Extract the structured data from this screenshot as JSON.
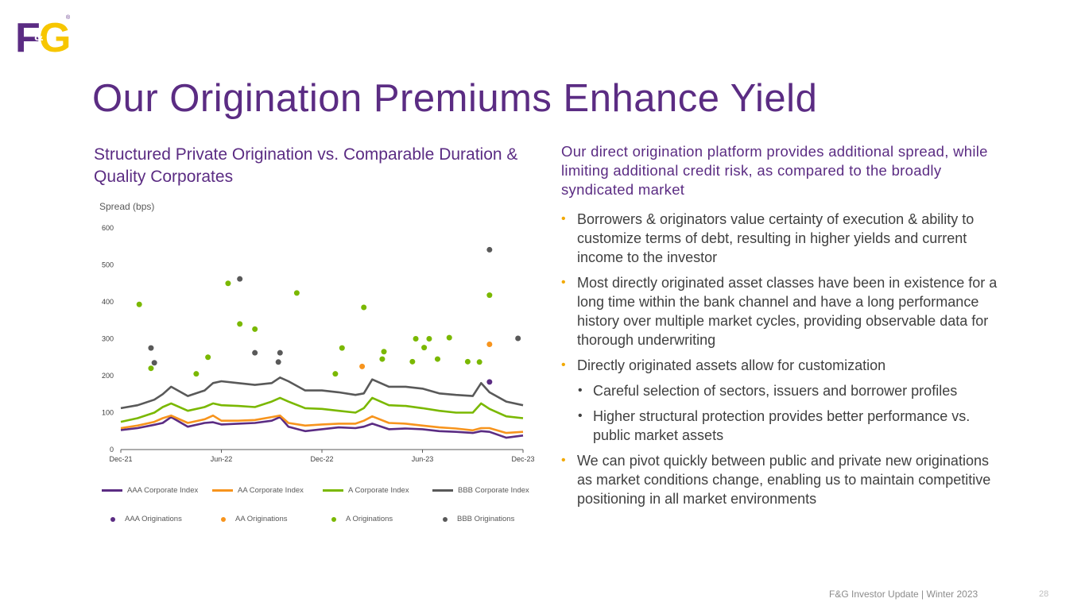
{
  "slide": {
    "title": "Our Origination Premiums Enhance Yield",
    "chart_heading": "Structured Private Origination vs. Comparable Duration & Quality Corporates",
    "right_heading": "Our direct origination platform provides additional spread, while limiting additional credit risk, as compared to the broadly syndicated market",
    "bullets": [
      "Borrowers & originators value certainty of execution & ability to customize terms of debt, resulting in higher yields and current income to the investor",
      "Most directly originated asset classes have been in existence for a long time within the bank channel and have a long performance history over multiple market cycles, providing observable data for thorough underwriting",
      "Directly originated assets allow for customization",
      "Careful selection of sectors, issuers and borrower profiles",
      "Higher structural protection provides better performance vs. public market assets",
      "We can pivot quickly between public and private new originations as market conditions change, enabling us to maintain competitive positioning in all market environments"
    ],
    "footer": "F&G Investor Update | Winter 2023",
    "page_number": "28"
  },
  "logo": {
    "text_f": "F",
    "text_amp": "&",
    "text_g": "G",
    "mark": "®",
    "purple": "#5b2c83",
    "yellow": "#f7c600"
  },
  "colors": {
    "AAA": "#5b2c83",
    "AA": "#f7941d",
    "A": "#7ab800",
    "BBB": "#595959"
  },
  "chart_data": {
    "type": "line",
    "ylabel": "Spread (bps)",
    "ylim": [
      0,
      600
    ],
    "yticks": [
      0,
      100,
      200,
      300,
      400,
      500,
      600
    ],
    "x_tick_labels": [
      "Dec-21",
      "Jun-22",
      "Dec-22",
      "Jun-23",
      "Dec-23"
    ],
    "x_axis_months": [
      0,
      6,
      12,
      18,
      24
    ],
    "x_unit": "months since Dec-21",
    "series": [
      {
        "name": "AAA Corporate Index",
        "key": "AAA",
        "x": [
          0,
          1,
          2,
          2.5,
          3,
          4,
          5,
          5.5,
          6,
          7,
          8,
          9,
          9.5,
          10,
          11,
          12,
          13,
          14,
          14.5,
          15,
          16,
          17,
          18,
          19,
          20,
          21,
          21.5,
          22,
          23,
          24
        ],
        "values": [
          53,
          58,
          67,
          72,
          88,
          62,
          72,
          74,
          68,
          70,
          72,
          78,
          88,
          62,
          50,
          55,
          60,
          58,
          62,
          70,
          55,
          57,
          55,
          50,
          48,
          45,
          50,
          48,
          32,
          38
        ]
      },
      {
        "name": "AA Corporate Index",
        "key": "AA",
        "x": [
          0,
          1,
          2,
          2.5,
          3,
          4,
          5,
          5.5,
          6,
          7,
          8,
          9,
          9.5,
          10,
          11,
          12,
          13,
          14,
          14.5,
          15,
          16,
          17,
          18,
          19,
          20,
          21,
          21.5,
          22,
          23,
          24
        ],
        "values": [
          58,
          65,
          75,
          85,
          92,
          72,
          82,
          92,
          78,
          78,
          80,
          88,
          92,
          72,
          65,
          68,
          70,
          70,
          78,
          90,
          72,
          70,
          65,
          60,
          57,
          52,
          58,
          58,
          45,
          48
        ]
      },
      {
        "name": "A Corporate Index",
        "key": "A",
        "x": [
          0,
          1,
          2,
          2.5,
          3,
          4,
          5,
          5.5,
          6,
          7,
          8,
          9,
          9.5,
          10,
          11,
          12,
          13,
          14,
          14.5,
          15,
          16,
          17,
          18,
          19,
          20,
          21,
          21.5,
          22,
          23,
          24
        ],
        "values": [
          75,
          85,
          100,
          115,
          125,
          105,
          115,
          125,
          120,
          118,
          115,
          130,
          140,
          130,
          112,
          110,
          105,
          100,
          112,
          140,
          120,
          118,
          112,
          105,
          100,
          100,
          125,
          110,
          90,
          85
        ]
      },
      {
        "name": "BBB Corporate Index",
        "key": "BBB",
        "x": [
          0,
          1,
          2,
          2.5,
          3,
          4,
          5,
          5.5,
          6,
          7,
          8,
          9,
          9.5,
          10,
          11,
          12,
          13,
          14,
          14.5,
          15,
          16,
          17,
          18,
          19,
          20,
          21,
          21.5,
          22,
          23,
          24
        ],
        "values": [
          112,
          120,
          135,
          150,
          170,
          145,
          160,
          180,
          185,
          180,
          175,
          180,
          195,
          185,
          160,
          160,
          155,
          148,
          152,
          190,
          170,
          170,
          165,
          152,
          148,
          145,
          180,
          155,
          130,
          120
        ]
      }
    ],
    "originations": [
      {
        "name": "AAA Originations",
        "key": "AAA",
        "points": [
          {
            "x": 22.0,
            "y": 183
          }
        ]
      },
      {
        "name": "AA Originations",
        "key": "AA",
        "points": [
          {
            "x": 14.4,
            "y": 225
          },
          {
            "x": 22.0,
            "y": 285
          }
        ]
      },
      {
        "name": "A Originations",
        "key": "A",
        "points": [
          {
            "x": 1.1,
            "y": 393
          },
          {
            "x": 1.8,
            "y": 220
          },
          {
            "x": 4.5,
            "y": 205
          },
          {
            "x": 5.2,
            "y": 250
          },
          {
            "x": 6.4,
            "y": 450
          },
          {
            "x": 7.1,
            "y": 340
          },
          {
            "x": 8.0,
            "y": 326
          },
          {
            "x": 10.5,
            "y": 424
          },
          {
            "x": 12.8,
            "y": 205
          },
          {
            "x": 13.2,
            "y": 275
          },
          {
            "x": 14.5,
            "y": 385
          },
          {
            "x": 15.6,
            "y": 245
          },
          {
            "x": 15.7,
            "y": 265
          },
          {
            "x": 17.4,
            "y": 238
          },
          {
            "x": 17.6,
            "y": 300
          },
          {
            "x": 18.1,
            "y": 276
          },
          {
            "x": 18.4,
            "y": 300
          },
          {
            "x": 18.9,
            "y": 245
          },
          {
            "x": 19.6,
            "y": 303
          },
          {
            "x": 20.7,
            "y": 238
          },
          {
            "x": 21.4,
            "y": 237
          },
          {
            "x": 22.0,
            "y": 418
          }
        ]
      },
      {
        "name": "BBB Originations",
        "key": "BBB",
        "points": [
          {
            "x": 1.8,
            "y": 275
          },
          {
            "x": 2.0,
            "y": 235
          },
          {
            "x": 7.1,
            "y": 462
          },
          {
            "x": 8.0,
            "y": 262
          },
          {
            "x": 9.4,
            "y": 237
          },
          {
            "x": 9.5,
            "y": 262
          },
          {
            "x": 22.0,
            "y": 541
          },
          {
            "x": 23.7,
            "y": 301
          }
        ]
      }
    ]
  }
}
